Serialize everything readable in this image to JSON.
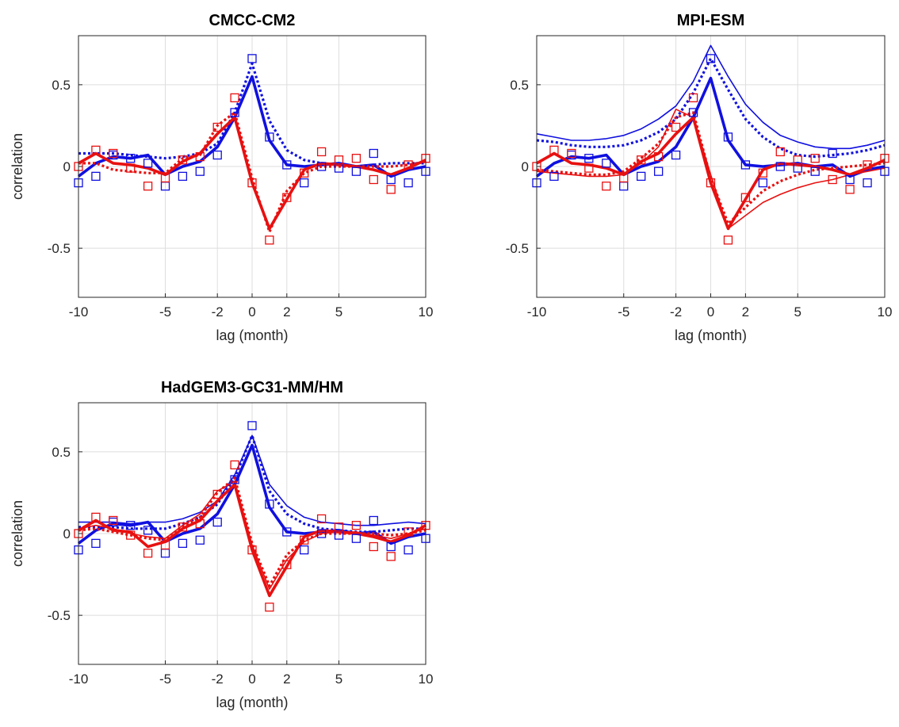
{
  "chart_data": [
    {
      "type": "line",
      "title": "CMCC-CM2",
      "xlabel": "lag (month)",
      "ylabel": "correlation",
      "xlim": [
        -10,
        10
      ],
      "ylim": [
        -0.8,
        0.8
      ],
      "xticks": [
        -10,
        -5,
        -2,
        0,
        2,
        5,
        10
      ],
      "xticklabels": [
        "-10",
        "-5",
        "-2",
        "0",
        "2",
        "5",
        "10"
      ],
      "yticks": [
        -0.5,
        0,
        0.5
      ],
      "yticklabels": [
        "-0.5",
        "0",
        "0.5"
      ],
      "grid": true,
      "x": [
        -10,
        -9,
        -8,
        -7,
        -6,
        -5,
        -4,
        -3,
        -2,
        -1,
        0,
        1,
        2,
        3,
        4,
        5,
        6,
        7,
        8,
        9,
        10
      ],
      "series": [
        {
          "color": "#1010e0",
          "style": "thick-solid",
          "values": [
            -0.06,
            0.02,
            0.06,
            0.05,
            0.07,
            -0.05,
            0.0,
            0.03,
            0.12,
            0.3,
            0.55,
            0.16,
            0.01,
            0.0,
            0.01,
            0.02,
            0.0,
            0.01,
            -0.06,
            -0.02,
            0.0
          ]
        },
        {
          "color": "#1010e0",
          "style": "dotted",
          "values": [
            0.08,
            0.08,
            0.08,
            0.07,
            0.06,
            0.05,
            0.06,
            0.08,
            0.14,
            0.33,
            0.63,
            0.28,
            0.1,
            0.04,
            0.02,
            0.01,
            0.0,
            0.01,
            0.02,
            0.02,
            0.02
          ]
        },
        {
          "color": "#e81010",
          "style": "thick-solid",
          "values": [
            0.02,
            0.08,
            0.02,
            0.01,
            -0.01,
            -0.05,
            0.03,
            0.08,
            0.2,
            0.3,
            -0.1,
            -0.38,
            -0.2,
            -0.02,
            0.02,
            0.01,
            0.0,
            -0.02,
            -0.05,
            -0.01,
            0.04
          ]
        },
        {
          "color": "#e81010",
          "style": "dotted",
          "values": [
            0.02,
            0.02,
            -0.02,
            -0.03,
            -0.04,
            -0.04,
            0.05,
            0.07,
            0.25,
            0.33,
            -0.07,
            -0.4,
            -0.15,
            -0.04,
            0.0,
            0.0,
            0.0,
            0.0,
            0.0,
            0.01,
            0.03
          ]
        },
        {
          "color": "#1010e0",
          "style": "squares",
          "values": [
            -0.1,
            -0.06,
            0.07,
            0.05,
            0.02,
            -0.12,
            -0.06,
            -0.03,
            0.07,
            0.33,
            0.66,
            0.18,
            0.01,
            -0.1,
            0.0,
            -0.01,
            -0.03,
            0.08,
            -0.08,
            -0.1,
            -0.03
          ]
        },
        {
          "color": "#e81010",
          "style": "squares",
          "values": [
            0.0,
            0.1,
            0.08,
            -0.01,
            -0.12,
            -0.07,
            0.04,
            0.06,
            0.24,
            0.42,
            -0.1,
            -0.45,
            -0.19,
            -0.04,
            0.09,
            0.04,
            0.05,
            -0.08,
            -0.14,
            0.01,
            0.05
          ]
        }
      ]
    },
    {
      "type": "line",
      "title": "MPI-ESM",
      "xlabel": "lag (month)",
      "ylabel": "",
      "xlim": [
        -10,
        10
      ],
      "ylim": [
        -0.8,
        0.8
      ],
      "xticks": [
        -10,
        -5,
        -2,
        0,
        2,
        5,
        10
      ],
      "xticklabels": [
        "-10",
        "-5",
        "-2",
        "0",
        "2",
        "5",
        "10"
      ],
      "yticks": [
        -0.5,
        0,
        0.5
      ],
      "yticklabels": [
        "-0.5",
        "0",
        "0.5"
      ],
      "grid": true,
      "x": [
        -10,
        -9,
        -8,
        -7,
        -6,
        -5,
        -4,
        -3,
        -2,
        -1,
        0,
        1,
        2,
        3,
        4,
        5,
        6,
        7,
        8,
        9,
        10
      ],
      "series": [
        {
          "color": "#1010e0",
          "style": "thick-solid",
          "values": [
            -0.06,
            0.02,
            0.06,
            0.05,
            0.07,
            -0.05,
            0.0,
            0.03,
            0.12,
            0.3,
            0.54,
            0.16,
            0.01,
            0.0,
            0.01,
            0.02,
            0.0,
            0.01,
            -0.06,
            -0.02,
            0.0
          ]
        },
        {
          "color": "#1010e0",
          "style": "thin-solid",
          "values": [
            0.2,
            0.18,
            0.16,
            0.16,
            0.17,
            0.19,
            0.23,
            0.29,
            0.37,
            0.52,
            0.74,
            0.55,
            0.38,
            0.27,
            0.19,
            0.15,
            0.12,
            0.11,
            0.11,
            0.13,
            0.16
          ]
        },
        {
          "color": "#1010e0",
          "style": "dotted",
          "values": [
            0.16,
            0.15,
            0.13,
            0.12,
            0.12,
            0.13,
            0.16,
            0.21,
            0.29,
            0.45,
            0.66,
            0.47,
            0.29,
            0.18,
            0.11,
            0.07,
            0.06,
            0.07,
            0.08,
            0.1,
            0.13
          ]
        },
        {
          "color": "#e81010",
          "style": "thick-solid",
          "values": [
            0.02,
            0.08,
            0.02,
            0.01,
            -0.01,
            -0.05,
            0.03,
            0.08,
            0.2,
            0.3,
            -0.1,
            -0.38,
            -0.2,
            -0.02,
            0.02,
            0.01,
            0.0,
            -0.02,
            -0.05,
            -0.01,
            0.04
          ]
        },
        {
          "color": "#e81010",
          "style": "thin-solid",
          "values": [
            -0.03,
            -0.04,
            -0.05,
            -0.06,
            -0.06,
            -0.05,
            0.02,
            0.12,
            0.35,
            0.3,
            -0.05,
            -0.38,
            -0.3,
            -0.22,
            -0.17,
            -0.13,
            -0.1,
            -0.08,
            -0.05,
            -0.03,
            -0.01
          ]
        },
        {
          "color": "#e81010",
          "style": "dotted",
          "values": [
            -0.02,
            -0.03,
            -0.04,
            -0.05,
            -0.05,
            -0.03,
            0.05,
            0.14,
            0.3,
            0.33,
            -0.07,
            -0.35,
            -0.25,
            -0.15,
            -0.09,
            -0.05,
            -0.02,
            -0.01,
            0.0,
            0.01,
            0.02
          ]
        },
        {
          "color": "#1010e0",
          "style": "squares",
          "values": [
            -0.1,
            -0.06,
            0.07,
            0.05,
            0.02,
            -0.12,
            -0.06,
            -0.03,
            0.07,
            0.33,
            0.66,
            0.18,
            0.01,
            -0.1,
            0.0,
            -0.01,
            -0.03,
            0.08,
            -0.08,
            -0.1,
            -0.03
          ]
        },
        {
          "color": "#e81010",
          "style": "squares",
          "values": [
            0.0,
            0.1,
            0.08,
            -0.01,
            -0.12,
            -0.07,
            0.04,
            0.06,
            0.24,
            0.42,
            -0.1,
            -0.45,
            -0.19,
            -0.04,
            0.09,
            0.04,
            0.05,
            -0.08,
            -0.14,
            0.01,
            0.05
          ]
        }
      ]
    },
    {
      "type": "line",
      "title": "HadGEM3-GC31-MM/HM",
      "xlabel": "lag (month)",
      "ylabel": "correlation",
      "xlim": [
        -10,
        10
      ],
      "ylim": [
        -0.8,
        0.8
      ],
      "xticks": [
        -10,
        -5,
        -2,
        0,
        2,
        5,
        10
      ],
      "xticklabels": [
        "-10",
        "-5",
        "-2",
        "0",
        "2",
        "5",
        "10"
      ],
      "yticks": [
        -0.5,
        0,
        0.5
      ],
      "yticklabels": [
        "-0.5",
        "0",
        "0.5"
      ],
      "grid": true,
      "x": [
        -10,
        -9,
        -8,
        -7,
        -6,
        -5,
        -4,
        -3,
        -2,
        -1,
        0,
        1,
        2,
        3,
        4,
        5,
        6,
        7,
        8,
        9,
        10
      ],
      "series": [
        {
          "color": "#1010e0",
          "style": "thick-solid",
          "values": [
            -0.06,
            0.02,
            0.06,
            0.05,
            0.07,
            -0.05,
            0.0,
            0.03,
            0.12,
            0.3,
            0.54,
            0.16,
            0.01,
            0.0,
            0.01,
            0.02,
            0.0,
            0.01,
            -0.06,
            -0.02,
            0.0
          ]
        },
        {
          "color": "#1010e0",
          "style": "thin-solid",
          "values": [
            0.07,
            0.07,
            0.07,
            0.06,
            0.07,
            0.07,
            0.09,
            0.13,
            0.2,
            0.36,
            0.6,
            0.3,
            0.17,
            0.1,
            0.07,
            0.06,
            0.05,
            0.05,
            0.06,
            0.07,
            0.06
          ]
        },
        {
          "color": "#1010e0",
          "style": "dotted",
          "values": [
            0.04,
            0.04,
            0.04,
            0.03,
            0.03,
            0.03,
            0.06,
            0.1,
            0.18,
            0.34,
            0.6,
            0.26,
            0.12,
            0.06,
            0.03,
            0.02,
            0.01,
            0.01,
            0.02,
            0.03,
            0.03
          ]
        },
        {
          "color": "#e81010",
          "style": "thick-solid",
          "values": [
            0.02,
            0.08,
            0.02,
            0.01,
            -0.08,
            -0.05,
            0.03,
            0.08,
            0.2,
            0.3,
            -0.1,
            -0.38,
            -0.2,
            -0.02,
            0.02,
            0.01,
            0.0,
            -0.02,
            -0.05,
            -0.01,
            0.05
          ]
        },
        {
          "color": "#e81010",
          "style": "thin-solid",
          "values": [
            0.03,
            0.05,
            0.03,
            0.0,
            -0.02,
            -0.03,
            0.05,
            0.12,
            0.26,
            0.32,
            -0.07,
            -0.34,
            -0.16,
            -0.05,
            0.0,
            0.01,
            0.01,
            -0.01,
            -0.03,
            0.0,
            0.03
          ]
        },
        {
          "color": "#e81010",
          "style": "dotted",
          "values": [
            0.02,
            0.03,
            0.01,
            -0.01,
            -0.03,
            -0.04,
            0.04,
            0.1,
            0.25,
            0.34,
            -0.06,
            -0.32,
            -0.13,
            -0.04,
            0.0,
            0.0,
            0.0,
            0.0,
            -0.01,
            0.0,
            0.02
          ]
        },
        {
          "color": "#1010e0",
          "style": "squares",
          "values": [
            -0.1,
            -0.06,
            0.07,
            0.05,
            0.02,
            -0.12,
            -0.06,
            -0.04,
            0.07,
            0.33,
            0.66,
            0.18,
            0.01,
            -0.1,
            0.0,
            -0.01,
            -0.03,
            0.08,
            -0.08,
            -0.1,
            -0.03
          ]
        },
        {
          "color": "#e81010",
          "style": "squares",
          "values": [
            0.0,
            0.1,
            0.08,
            -0.01,
            -0.12,
            -0.07,
            0.04,
            0.06,
            0.24,
            0.42,
            -0.1,
            -0.45,
            -0.19,
            -0.04,
            0.09,
            0.04,
            0.05,
            -0.08,
            -0.14,
            0.01,
            0.05
          ]
        }
      ]
    }
  ]
}
